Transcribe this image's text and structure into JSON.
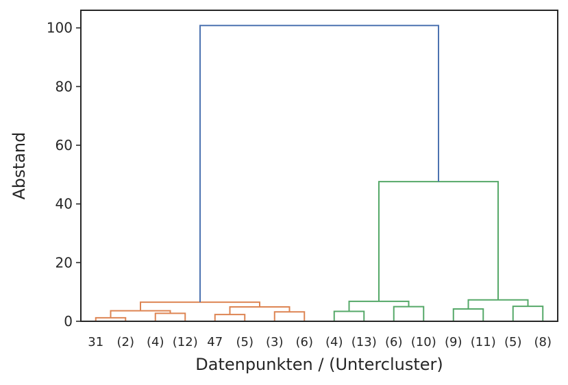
{
  "chart_data": {
    "type": "dendrogram",
    "title": "",
    "xlabel": "Datenpunkten / (Untercluster)",
    "ylabel": "Abstand",
    "ylim": [
      0,
      106
    ],
    "yticks": [
      0,
      20,
      40,
      60,
      80,
      100
    ],
    "grid": false,
    "leaves": [
      "31",
      "(2)",
      "(4)",
      "(12)",
      "47",
      "(5)",
      "(3)",
      "(6)",
      "(4)",
      "(13)",
      "(6)",
      "(10)",
      "(9)",
      "(11)",
      "(5)",
      "(8)"
    ],
    "cluster_colors": {
      "root": "#4c72b0",
      "cluster_1": "#dd8452",
      "cluster_2": "#55a868"
    },
    "merges": [
      {
        "left": [
          0
        ],
        "right": [
          1
        ],
        "left_height": 0,
        "right_height": 0,
        "height": 1.2,
        "cluster": "cluster_1"
      },
      {
        "left": [
          2
        ],
        "right": [
          3
        ],
        "left_height": 0,
        "right_height": 0,
        "height": 2.7,
        "cluster": "cluster_1"
      },
      {
        "left": [
          0,
          1
        ],
        "right": [
          2,
          3
        ],
        "left_height": 1.2,
        "right_height": 2.7,
        "height": 3.6,
        "cluster": "cluster_1"
      },
      {
        "left": [
          4
        ],
        "right": [
          5
        ],
        "left_height": 0,
        "right_height": 0,
        "height": 2.3,
        "cluster": "cluster_1"
      },
      {
        "left": [
          6
        ],
        "right": [
          7
        ],
        "left_height": 0,
        "right_height": 0,
        "height": 3.2,
        "cluster": "cluster_1"
      },
      {
        "left": [
          4,
          5
        ],
        "right": [
          6,
          7
        ],
        "left_height": 2.3,
        "right_height": 3.2,
        "height": 4.9,
        "cluster": "cluster_1"
      },
      {
        "left": [
          0,
          1,
          2,
          3
        ],
        "right": [
          4,
          5,
          6,
          7
        ],
        "left_height": 3.6,
        "right_height": 4.9,
        "height": 6.5,
        "cluster": "cluster_1"
      },
      {
        "left": [
          8
        ],
        "right": [
          9
        ],
        "left_height": 0,
        "right_height": 0,
        "height": 3.4,
        "cluster": "cluster_2"
      },
      {
        "left": [
          10
        ],
        "right": [
          11
        ],
        "left_height": 0,
        "right_height": 0,
        "height": 5.0,
        "cluster": "cluster_2"
      },
      {
        "left": [
          8,
          9
        ],
        "right": [
          10,
          11
        ],
        "left_height": 3.4,
        "right_height": 5.0,
        "height": 6.8,
        "cluster": "cluster_2"
      },
      {
        "left": [
          12
        ],
        "right": [
          13
        ],
        "left_height": 0,
        "right_height": 0,
        "height": 4.2,
        "cluster": "cluster_2"
      },
      {
        "left": [
          14
        ],
        "right": [
          15
        ],
        "left_height": 0,
        "right_height": 0,
        "height": 5.1,
        "cluster": "cluster_2"
      },
      {
        "left": [
          12,
          13
        ],
        "right": [
          14,
          15
        ],
        "left_height": 4.2,
        "right_height": 5.1,
        "height": 7.3,
        "cluster": "cluster_2"
      },
      {
        "left": [
          8,
          9,
          10,
          11
        ],
        "right": [
          12,
          13,
          14,
          15
        ],
        "left_height": 6.8,
        "right_height": 7.3,
        "height": 47.6,
        "cluster": "cluster_2"
      },
      {
        "left": [
          0,
          1,
          2,
          3,
          4,
          5,
          6,
          7
        ],
        "right": [
          8,
          9,
          10,
          11,
          12,
          13,
          14,
          15
        ],
        "left_height": 6.5,
        "right_height": 47.6,
        "height": 100.8,
        "cluster": "root"
      }
    ]
  }
}
